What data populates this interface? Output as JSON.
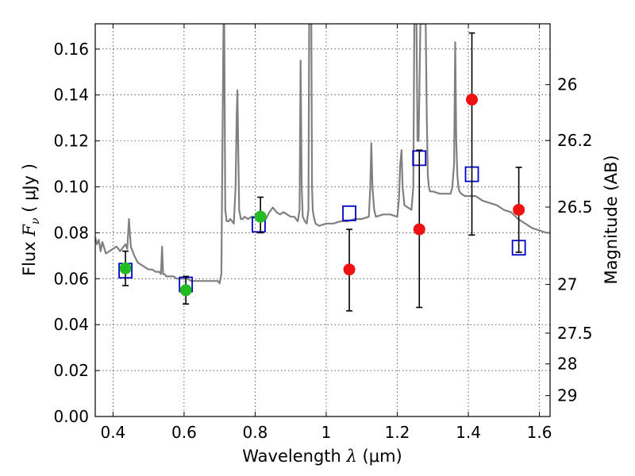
{
  "chart_data": {
    "type": "scatter",
    "xlabel": {
      "text": "Wavelength",
      "symbol": "λ",
      "unit": "(μm)"
    },
    "ylabel": {
      "text": "Flux",
      "symbol": "F",
      "subscript": "ν",
      "unit": "( μJy )"
    },
    "y2label": "Magnitude (AB)",
    "xlim": [
      0.35,
      1.63
    ],
    "ylim": [
      0.0,
      0.171
    ],
    "xticks": [
      0.4,
      0.6,
      0.8,
      1.0,
      1.2,
      1.4,
      1.6
    ],
    "xtick_labels": [
      "0.4",
      "0.6",
      "0.8",
      "1",
      "1.2",
      "1.4",
      "1.6"
    ],
    "yticks": [
      0.0,
      0.02,
      0.04,
      0.06,
      0.08,
      0.1,
      0.12,
      0.14,
      0.16
    ],
    "ytick_labels": [
      "0.00",
      "0.02",
      "0.04",
      "0.06",
      "0.08",
      "0.10",
      "0.12",
      "0.14",
      "0.16"
    ],
    "y2ticks": [
      {
        "label": "26",
        "flux": 0.1445
      },
      {
        "label": "26.2",
        "flux": 0.1202
      },
      {
        "label": "26.5",
        "flux": 0.0912
      },
      {
        "label": "27",
        "flux": 0.0575
      },
      {
        "label": "27.5",
        "flux": 0.0363
      },
      {
        "label": "28",
        "flux": 0.0229
      },
      {
        "label": "29",
        "flux": 0.0091
      }
    ],
    "grid": true,
    "series": [
      {
        "kind": "line",
        "color": "#808080",
        "x": [
          0.35,
          0.355,
          0.36,
          0.365,
          0.37,
          0.38,
          0.39,
          0.4,
          0.41,
          0.42,
          0.425,
          0.43,
          0.435,
          0.44,
          0.445,
          0.45,
          0.46,
          0.47,
          0.48,
          0.49,
          0.5,
          0.51,
          0.52,
          0.53,
          0.535,
          0.538,
          0.541,
          0.545,
          0.55,
          0.56,
          0.57,
          0.58,
          0.59,
          0.6,
          0.61,
          0.62,
          0.64,
          0.66,
          0.68,
          0.695,
          0.7,
          0.705,
          0.708,
          0.711,
          0.713,
          0.716,
          0.72,
          0.725,
          0.73,
          0.74,
          0.745,
          0.748,
          0.75,
          0.752,
          0.755,
          0.76,
          0.765,
          0.77,
          0.78,
          0.79,
          0.8,
          0.81,
          0.82,
          0.83,
          0.84,
          0.85,
          0.86,
          0.87,
          0.88,
          0.89,
          0.9,
          0.91,
          0.92,
          0.925,
          0.928,
          0.931,
          0.934,
          0.937,
          0.94,
          0.945,
          0.95,
          0.952,
          0.955,
          0.958,
          0.96,
          0.962,
          0.965,
          0.97,
          0.98,
          1.0,
          1.02,
          1.04,
          1.06,
          1.08,
          1.1,
          1.12,
          1.124,
          1.127,
          1.13,
          1.135,
          1.14,
          1.16,
          1.18,
          1.2,
          1.205,
          1.208,
          1.212,
          1.215,
          1.22,
          1.23,
          1.24,
          1.245,
          1.248,
          1.251,
          1.254,
          1.257,
          1.26,
          1.265,
          1.27,
          1.275,
          1.28,
          1.283,
          1.286,
          1.289,
          1.292,
          1.3,
          1.32,
          1.34,
          1.35,
          1.355,
          1.36,
          1.363,
          1.366,
          1.369,
          1.372,
          1.375,
          1.38,
          1.39,
          1.4,
          1.42,
          1.44,
          1.46,
          1.48,
          1.5,
          1.52,
          1.54,
          1.56,
          1.58,
          1.6,
          1.62,
          1.63
        ],
        "y": [
          0.078,
          0.075,
          0.077,
          0.072,
          0.076,
          0.071,
          0.072,
          0.073,
          0.074,
          0.072,
          0.073,
          0.074,
          0.075,
          0.073,
          0.086,
          0.074,
          0.07,
          0.067,
          0.066,
          0.065,
          0.064,
          0.064,
          0.063,
          0.063,
          0.062,
          0.074,
          0.062,
          0.062,
          0.061,
          0.061,
          0.061,
          0.06,
          0.06,
          0.06,
          0.06,
          0.059,
          0.059,
          0.059,
          0.059,
          0.059,
          0.058,
          0.062,
          0.12,
          0.171,
          0.171,
          0.09,
          0.085,
          0.085,
          0.086,
          0.084,
          0.1,
          0.131,
          0.142,
          0.12,
          0.09,
          0.086,
          0.086,
          0.087,
          0.086,
          0.087,
          0.087,
          0.087,
          0.086,
          0.086,
          0.089,
          0.091,
          0.089,
          0.088,
          0.089,
          0.088,
          0.087,
          0.087,
          0.085,
          0.09,
          0.155,
          0.1,
          0.087,
          0.086,
          0.085,
          0.084,
          0.09,
          0.171,
          0.171,
          0.171,
          0.1,
          0.09,
          0.087,
          0.084,
          0.083,
          0.084,
          0.084,
          0.085,
          0.085,
          0.086,
          0.086,
          0.087,
          0.1,
          0.119,
          0.1,
          0.09,
          0.087,
          0.088,
          0.088,
          0.087,
          0.095,
          0.109,
          0.116,
          0.1,
          0.092,
          0.091,
          0.09,
          0.1,
          0.171,
          0.171,
          0.171,
          0.12,
          0.12,
          0.171,
          0.171,
          0.171,
          0.171,
          0.13,
          0.105,
          0.1,
          0.098,
          0.098,
          0.097,
          0.097,
          0.097,
          0.1,
          0.11,
          0.163,
          0.12,
          0.105,
          0.1,
          0.098,
          0.097,
          0.096,
          0.096,
          0.096,
          0.094,
          0.093,
          0.092,
          0.09,
          0.089,
          0.086,
          0.084,
          0.082,
          0.081,
          0.08,
          0.08
        ]
      },
      {
        "kind": "open-square",
        "color": "#0000cc",
        "x": [
          0.435,
          0.605,
          0.81,
          1.065,
          1.262,
          1.41,
          1.542
        ],
        "y": [
          0.0635,
          0.0575,
          0.0835,
          0.0885,
          0.1125,
          0.1055,
          0.0735
        ]
      },
      {
        "kind": "filled-circle",
        "color": "#22bb22",
        "x": [
          0.435,
          0.605,
          0.815
        ],
        "y": [
          0.0645,
          0.055,
          0.087
        ],
        "yerr_low": [
          0.057,
          0.049,
          0.08
        ],
        "yerr_high": [
          0.072,
          0.061,
          0.0955
        ]
      },
      {
        "kind": "filled-circle",
        "color": "#ee1111",
        "x": [
          1.065,
          1.262,
          1.41,
          1.542
        ],
        "y": [
          0.064,
          0.0815,
          0.138,
          0.09
        ],
        "yerr_low": [
          0.046,
          0.0475,
          0.079,
          0.0715
        ],
        "yerr_high": [
          0.0815,
          0.116,
          0.167,
          0.1085
        ]
      }
    ]
  }
}
